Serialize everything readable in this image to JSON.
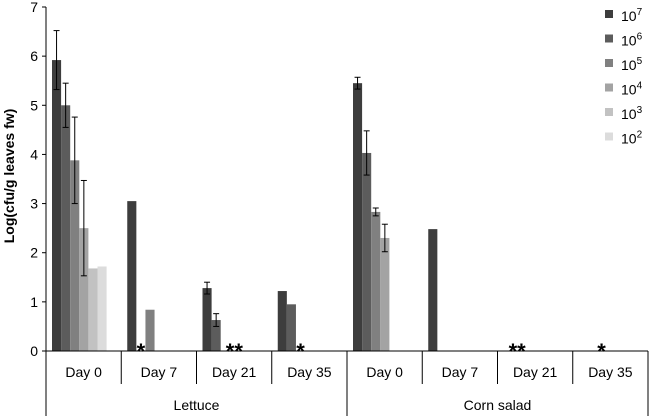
{
  "chart_data": {
    "type": "bar",
    "title": "",
    "xlabel": "",
    "ylabel": "Log(cfu/g leaves fw)",
    "ylim": [
      0,
      7
    ],
    "yticks": [
      "0",
      "1",
      "2",
      "3",
      "4",
      "5",
      "6",
      "7"
    ],
    "grid": false,
    "legend_position": "right",
    "groups": [
      {
        "name": "Lettuce",
        "categories": [
          "Day 0",
          "Day 7",
          "Day 21",
          "Day 35"
        ]
      },
      {
        "name": "Corn salad",
        "categories": [
          "Day 0",
          "Day 7",
          "Day 21",
          "Day 35"
        ]
      }
    ],
    "categories": [
      "Day 0",
      "Day 7",
      "Day 21",
      "Day 35",
      "Day 0",
      "Day 7",
      "Day 21",
      "Day 35"
    ],
    "series": [
      {
        "name": "10",
        "exp": "7",
        "color": "#3d3d3d",
        "values": [
          5.92,
          3.05,
          1.28,
          1.22,
          5.45,
          2.48,
          null,
          null
        ],
        "errors": [
          0.6,
          null,
          0.12,
          null,
          0.12,
          null,
          null,
          null
        ]
      },
      {
        "name": "10",
        "exp": "6",
        "color": "#5c5c5c",
        "values": [
          5.0,
          null,
          0.63,
          0.95,
          4.03,
          null,
          null,
          null
        ],
        "errors": [
          0.45,
          null,
          0.13,
          null,
          0.45,
          null,
          null,
          null
        ]
      },
      {
        "name": "10",
        "exp": "5",
        "color": "#808080",
        "values": [
          3.88,
          0.84,
          null,
          null,
          2.83,
          null,
          null,
          null
        ],
        "errors": [
          0.88,
          null,
          null,
          null,
          0.08,
          null,
          null,
          null
        ]
      },
      {
        "name": "10",
        "exp": "4",
        "color": "#a3a3a3",
        "values": [
          2.5,
          null,
          null,
          null,
          2.3,
          null,
          null,
          null
        ],
        "errors": [
          0.97,
          null,
          null,
          null,
          0.28,
          null,
          null,
          null
        ]
      },
      {
        "name": "10",
        "exp": "3",
        "color": "#c2c2c2",
        "values": [
          1.68,
          null,
          null,
          null,
          null,
          null,
          null,
          null
        ],
        "errors": [
          null,
          null,
          null,
          null,
          null,
          null,
          null,
          null
        ]
      },
      {
        "name": "10",
        "exp": "2",
        "color": "#dcdcdc",
        "values": [
          1.72,
          null,
          null,
          null,
          null,
          null,
          null,
          null
        ],
        "errors": [
          null,
          null,
          null,
          null,
          null,
          null,
          null,
          null
        ]
      }
    ],
    "annotations": [
      {
        "text": "*",
        "category_index": 1,
        "series_index": 1
      },
      {
        "text": "**",
        "category_index": 2,
        "series_index": 3
      },
      {
        "text": "*",
        "category_index": 3,
        "series_index": 2
      },
      {
        "text": "**",
        "category_index": 6,
        "series_index": 1
      },
      {
        "text": "*",
        "category_index": 7,
        "series_index": 2
      }
    ]
  }
}
